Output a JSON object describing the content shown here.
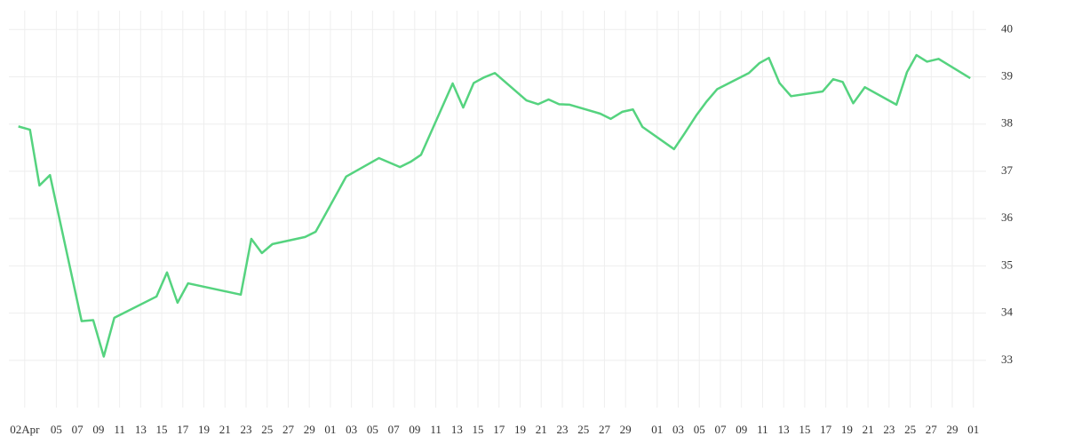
{
  "chart_data": {
    "type": "line",
    "series": [
      {
        "color": "#55d37f",
        "x": [
          -0.6,
          0.5,
          1.4,
          2.4,
          5.4,
          6.5,
          7.5,
          8.5,
          12.5,
          13.5,
          14.5,
          15.5,
          20.5,
          21.5,
          22.5,
          23.5,
          26.6,
          27.6,
          28.6,
          30.5,
          33.6,
          35.6,
          36.6,
          37.6,
          40.6,
          41.6,
          42.6,
          43.6,
          44.6,
          47.6,
          48.7,
          49.7,
          50.7,
          51.7,
          54.6,
          55.6,
          56.7,
          57.7,
          58.6,
          61.6,
          62.6,
          63.7,
          64.7,
          65.7,
          68.7,
          69.7,
          70.6,
          71.6,
          72.7,
          75.7,
          76.7,
          77.6,
          78.6,
          79.7,
          82.7,
          83.7,
          84.6,
          85.6,
          86.7,
          89.7
        ],
        "values": [
          37.95,
          37.88,
          36.7,
          36.92,
          33.83,
          33.85,
          33.08,
          33.9,
          34.35,
          34.86,
          34.22,
          34.63,
          34.39,
          35.57,
          35.27,
          35.46,
          35.61,
          35.72,
          36.12,
          36.89,
          37.28,
          37.09,
          37.2,
          37.35,
          38.86,
          38.35,
          38.87,
          38.99,
          39.08,
          38.5,
          38.42,
          38.52,
          38.42,
          38.41,
          38.22,
          38.11,
          38.26,
          38.31,
          37.94,
          37.47,
          37.8,
          38.18,
          38.48,
          38.74,
          39.08,
          39.29,
          39.4,
          38.87,
          38.59,
          38.69,
          38.95,
          38.89,
          38.44,
          38.78,
          38.41,
          39.1,
          39.46,
          39.32,
          39.38,
          38.97
        ]
      }
    ],
    "xlim": [
      -1.5,
      91.2
    ],
    "xticks": [
      {
        "value": 0,
        "label": "02Apr"
      },
      {
        "value": 3,
        "label": "05"
      },
      {
        "value": 5,
        "label": "07"
      },
      {
        "value": 7,
        "label": "09"
      },
      {
        "value": 9,
        "label": "11"
      },
      {
        "value": 11,
        "label": "13"
      },
      {
        "value": 13,
        "label": "15"
      },
      {
        "value": 15,
        "label": "17"
      },
      {
        "value": 17,
        "label": "19"
      },
      {
        "value": 19,
        "label": "21"
      },
      {
        "value": 21,
        "label": "23"
      },
      {
        "value": 23,
        "label": "25"
      },
      {
        "value": 25,
        "label": "27"
      },
      {
        "value": 27,
        "label": "29"
      },
      {
        "value": 29,
        "label": "01"
      },
      {
        "value": 31,
        "label": "03"
      },
      {
        "value": 33,
        "label": "05"
      },
      {
        "value": 35,
        "label": "07"
      },
      {
        "value": 37,
        "label": "09"
      },
      {
        "value": 39,
        "label": "11"
      },
      {
        "value": 41,
        "label": "13"
      },
      {
        "value": 43,
        "label": "15"
      },
      {
        "value": 45,
        "label": "17"
      },
      {
        "value": 47,
        "label": "19"
      },
      {
        "value": 49,
        "label": "21"
      },
      {
        "value": 51,
        "label": "23"
      },
      {
        "value": 53,
        "label": "25"
      },
      {
        "value": 55,
        "label": "27"
      },
      {
        "value": 57,
        "label": "29"
      },
      {
        "value": 60,
        "label": "01"
      },
      {
        "value": 62,
        "label": "03"
      },
      {
        "value": 64,
        "label": "05"
      },
      {
        "value": 66,
        "label": "07"
      },
      {
        "value": 68,
        "label": "09"
      },
      {
        "value": 70,
        "label": "11"
      },
      {
        "value": 72,
        "label": "13"
      },
      {
        "value": 74,
        "label": "15"
      },
      {
        "value": 76,
        "label": "17"
      },
      {
        "value": 78,
        "label": "19"
      },
      {
        "value": 80,
        "label": "21"
      },
      {
        "value": 82,
        "label": "23"
      },
      {
        "value": 84,
        "label": "25"
      },
      {
        "value": 86,
        "label": "27"
      },
      {
        "value": 88,
        "label": "29"
      },
      {
        "value": 90,
        "label": "01"
      }
    ],
    "ylim": [
      32,
      40.4
    ],
    "yticks": [
      33,
      34,
      35,
      36,
      37,
      38,
      39,
      40
    ],
    "grid": true
  }
}
